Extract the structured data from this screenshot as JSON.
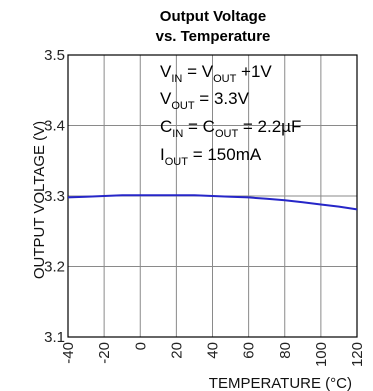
{
  "chart_data": {
    "type": "line",
    "title_line1": "Output Voltage",
    "title_line2": "vs. Temperature",
    "xlabel": "TEMPERATURE (°C)",
    "ylabel": "OUTPUT VOLTAGE (V)",
    "xlim": [
      -40,
      120
    ],
    "ylim": [
      3.1,
      3.5
    ],
    "xticks": [
      "-40",
      "-20",
      "0",
      "20",
      "40",
      "60",
      "80",
      "100",
      "120"
    ],
    "yticks": [
      "3.1",
      "3.2",
      "3.3",
      "3.4",
      "3.5"
    ],
    "grid": true,
    "series": [
      {
        "color": "#2626c8",
        "x": [
          -40,
          -30,
          -20,
          -10,
          0,
          10,
          20,
          30,
          40,
          50,
          60,
          70,
          80,
          90,
          100,
          110,
          120
        ],
        "values": [
          3.298,
          3.299,
          3.3,
          3.301,
          3.301,
          3.301,
          3.301,
          3.301,
          3.3,
          3.299,
          3.298,
          3.296,
          3.294,
          3.291,
          3.288,
          3.285,
          3.281
        ]
      }
    ],
    "annotations": [
      {
        "parts": [
          [
            "V",
            ""
          ],
          [
            "IN",
            "sub"
          ],
          [
            " = V",
            ""
          ],
          [
            "OUT",
            "sub"
          ],
          [
            " +1V",
            ""
          ]
        ]
      },
      {
        "parts": [
          [
            "V",
            ""
          ],
          [
            "OUT",
            "sub"
          ],
          [
            " = 3.3V",
            ""
          ]
        ]
      },
      {
        "parts": [
          [
            "C",
            ""
          ],
          [
            "IN",
            "sub"
          ],
          [
            " = C",
            ""
          ],
          [
            "OUT",
            "sub"
          ],
          [
            " = 2.2µF",
            ""
          ]
        ]
      },
      {
        "parts": [
          [
            "I",
            ""
          ],
          [
            "OUT",
            "sub"
          ],
          [
            " = 150mA",
            ""
          ]
        ]
      }
    ]
  }
}
